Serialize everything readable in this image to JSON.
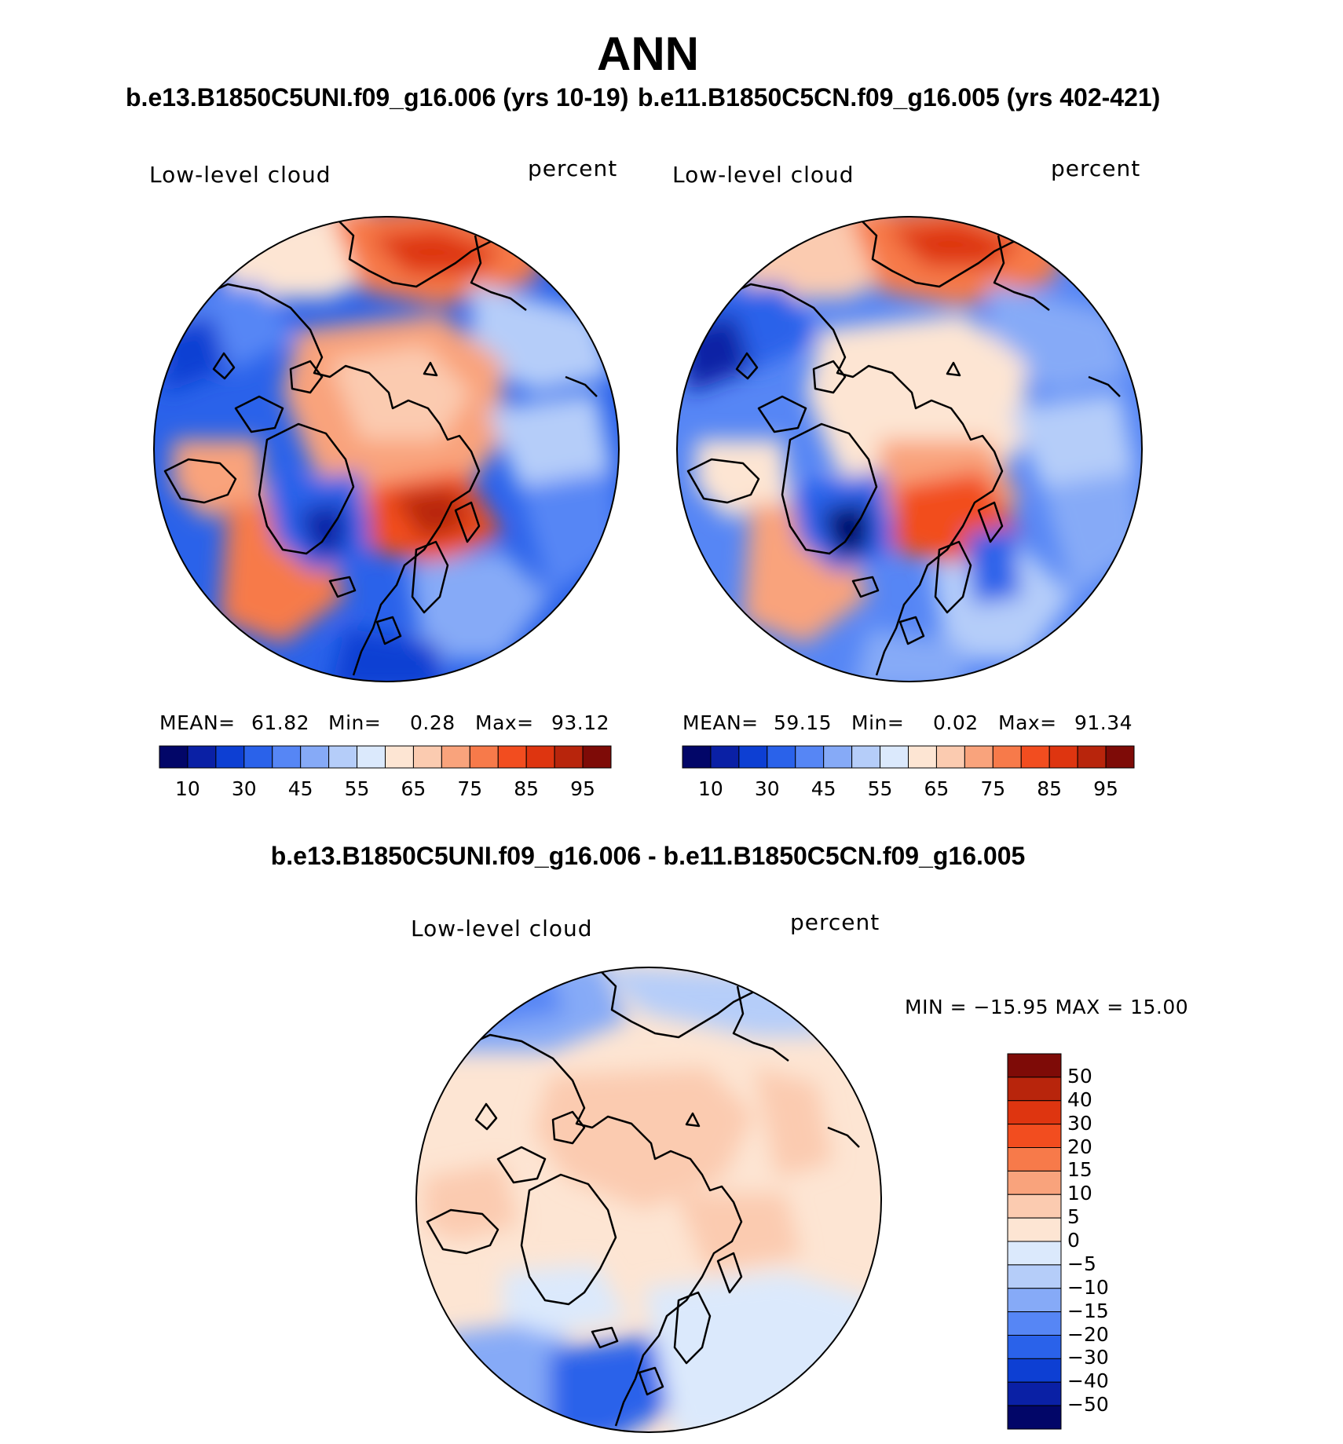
{
  "title": "ANN",
  "panels": [
    {
      "case_title": "b.e13.B1850C5UNI.f09_g16.006 (yrs 10-19)",
      "variable": "Low-level cloud",
      "units": "percent",
      "stats": {
        "mean_label": "MEAN=",
        "mean": "61.82",
        "min_label": "Min=",
        "min": "0.28",
        "max_label": "Max=",
        "max": "93.12"
      },
      "colorbar_ticks": [
        "10",
        "30",
        "45",
        "55",
        "65",
        "75",
        "85",
        "95"
      ]
    },
    {
      "case_title": "b.e11.B1850C5CN.f09_g16.005 (yrs 402-421)",
      "variable": "Low-level cloud",
      "units": "percent",
      "stats": {
        "mean_label": "MEAN=",
        "mean": "59.15",
        "min_label": "Min=",
        "min": "0.02",
        "max_label": "Max=",
        "max": "91.34"
      },
      "colorbar_ticks": [
        "10",
        "30",
        "45",
        "55",
        "65",
        "75",
        "85",
        "95"
      ]
    }
  ],
  "diff_panel": {
    "case_title": "b.e13.B1850C5UNI.f09_g16.006 - b.e11.B1850C5CN.f09_g16.005",
    "variable": "Low-level cloud",
    "units": "percent",
    "minmax_text": "MIN = −15.95  MAX =   15.00",
    "colorbar_ticks": [
      "50",
      "40",
      "30",
      "20",
      "15",
      "10",
      "5",
      "0",
      "−5",
      "−10",
      "−15",
      "−20",
      "−30",
      "−40",
      "−50"
    ]
  },
  "colors": {
    "abs_scale": [
      "#020668",
      "#0a20a5",
      "#0d3fd3",
      "#2a62ea",
      "#5686f5",
      "#86aaf7",
      "#b5cdf9",
      "#dbe9fc",
      "#fde5d3",
      "#fbcbb0",
      "#f9a37c",
      "#f77a4a",
      "#f24d1f",
      "#de3510",
      "#b8250c",
      "#7e0b07"
    ],
    "diff_scale": [
      "#020668",
      "#0a20a5",
      "#0d3fd3",
      "#2a62ea",
      "#5686f5",
      "#86aaf7",
      "#b5cdf9",
      "#dbe9fc",
      "#fde5d3",
      "#fbcbb0",
      "#f9a37c",
      "#f77a4a",
      "#f24d1f",
      "#de3510",
      "#b8250c",
      "#7e0b07"
    ]
  }
}
